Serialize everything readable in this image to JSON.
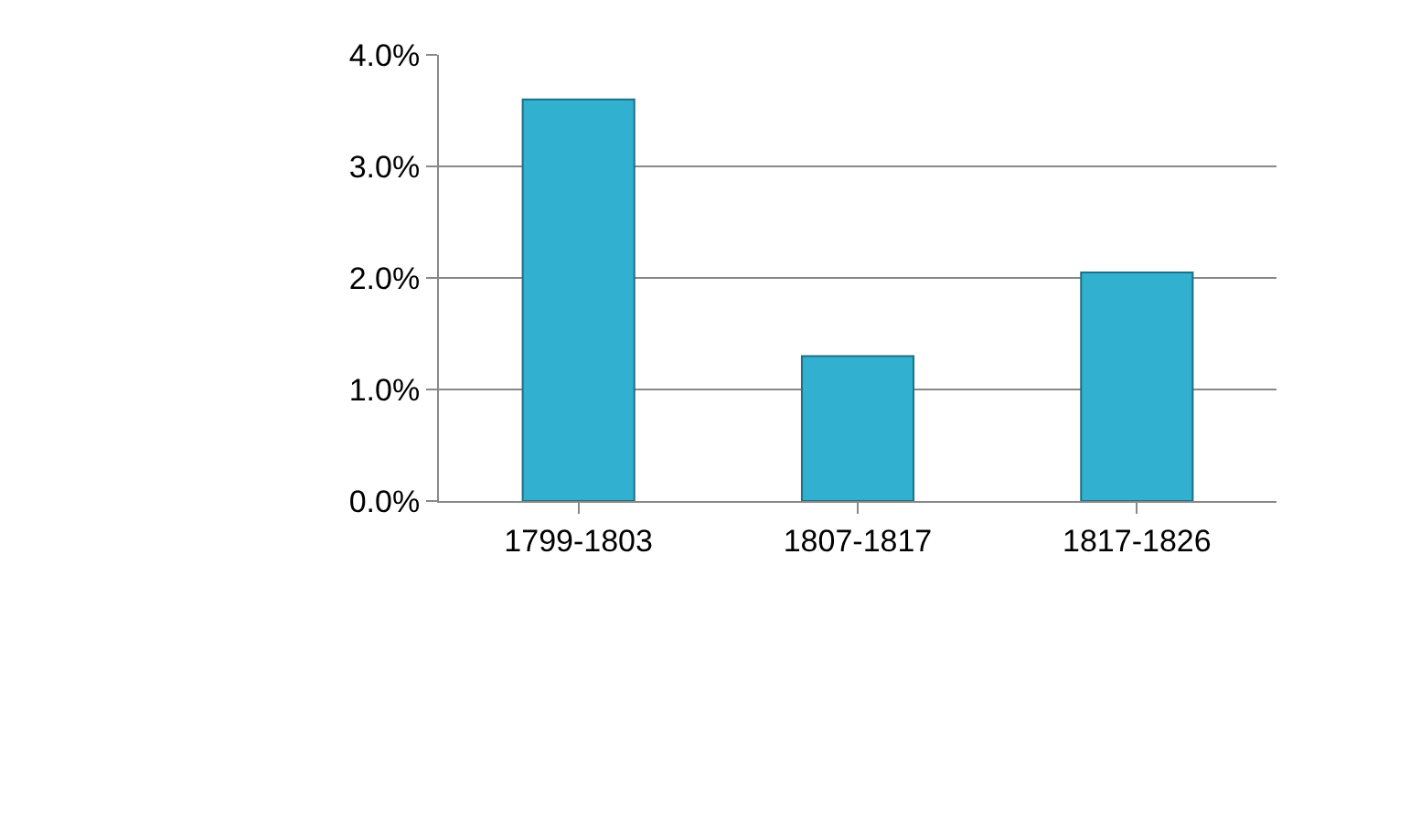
{
  "chart_data": {
    "type": "bar",
    "categories": [
      "1799-1803",
      "1807-1817",
      "1817-1826"
    ],
    "values": [
      3.6,
      1.3,
      2.05
    ],
    "color": "#31b0d0",
    "ylim": [
      0,
      4
    ],
    "yticks": [
      {
        "value": 0,
        "label": "0.0%"
      },
      {
        "value": 1,
        "label": "1.0%"
      },
      {
        "value": 2,
        "label": "2.0%"
      },
      {
        "value": 3,
        "label": "3.0%"
      },
      {
        "value": 4,
        "label": "4.0%"
      }
    ],
    "grid": "y"
  }
}
